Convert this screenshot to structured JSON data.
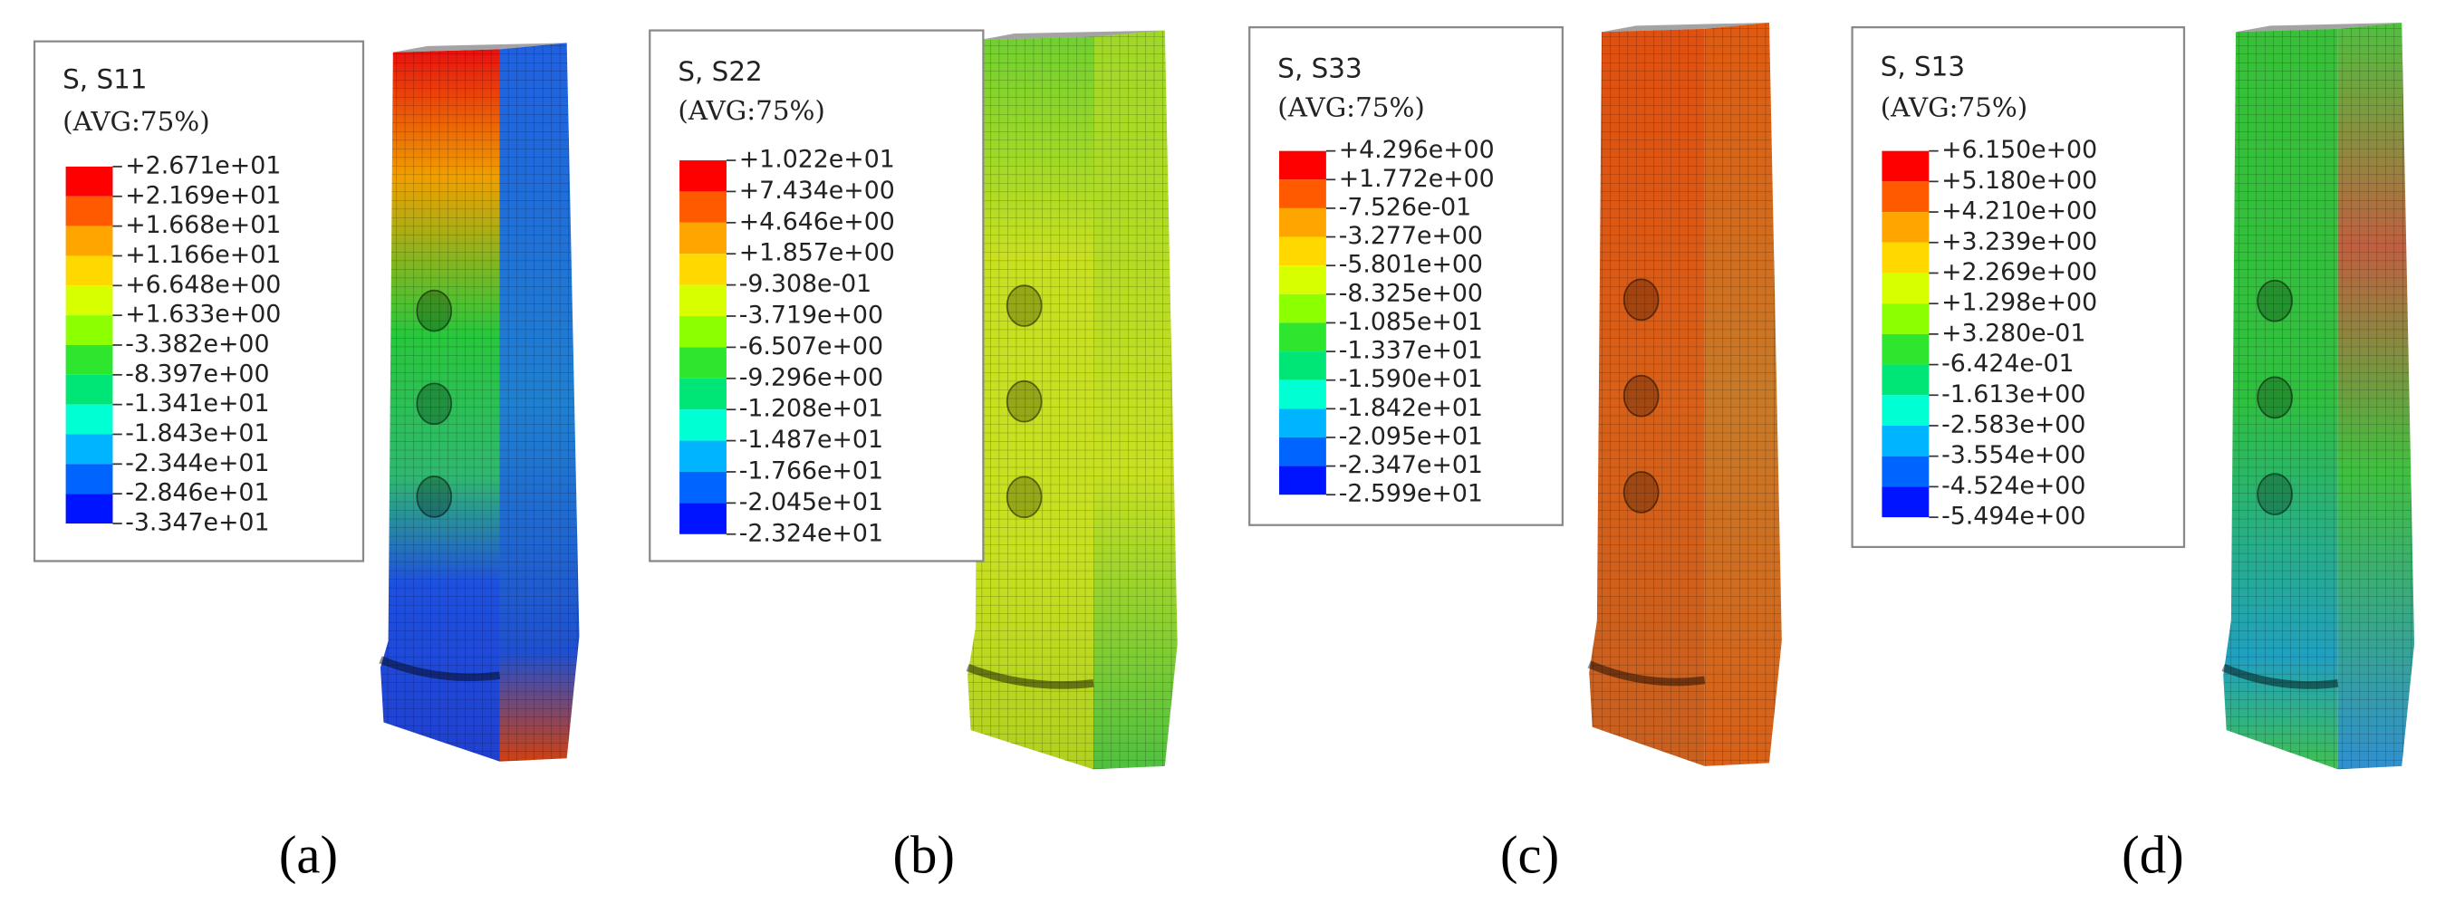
{
  "panels": [
    {
      "title": "S, S11",
      "subtitle": "(AVG:75%)",
      "caption": "(a)",
      "labels": [
        "+2.671e+01",
        "+2.169e+01",
        "+1.668e+01",
        "+1.166e+01",
        "+6.648e+00",
        "+1.633e+00",
        "-3.382e+00",
        "-8.397e+00",
        "-1.341e+01",
        "-1.843e+01",
        "-2.344e+01",
        "-2.846e+01",
        "-3.347e+01"
      ]
    },
    {
      "title": "S, S22",
      "subtitle": "(AVG:75%)",
      "caption": "(b)",
      "labels": [
        "+1.022e+01",
        "+7.434e+00",
        "+4.646e+00",
        "+1.857e+00",
        "-9.308e-01",
        "-3.719e+00",
        "-6.507e+00",
        "-9.296e+00",
        "-1.208e+01",
        "-1.487e+01",
        "-1.766e+01",
        "-2.045e+01",
        "-2.324e+01"
      ]
    },
    {
      "title": "S, S33",
      "subtitle": "(AVG:75%)",
      "caption": "(c)",
      "labels": [
        "+4.296e+00",
        "+1.772e+00",
        "-7.526e-01",
        "-3.277e+00",
        "-5.801e+00",
        "-8.325e+00",
        "-1.085e+01",
        "-1.337e+01",
        "-1.590e+01",
        "-1.842e+01",
        "-2.095e+01",
        "-2.347e+01",
        "-2.599e+01"
      ]
    },
    {
      "title": "S, S13",
      "subtitle": "(AVG:75%)",
      "caption": "(d)",
      "labels": [
        "+6.150e+00",
        "+5.180e+00",
        "+4.210e+00",
        "+3.239e+00",
        "+2.269e+00",
        "+1.298e+00",
        "+3.280e-01",
        "-6.424e-01",
        "-1.613e+00",
        "-2.583e+00",
        "-3.554e+00",
        "-4.524e+00",
        "-5.494e+00"
      ]
    }
  ]
}
